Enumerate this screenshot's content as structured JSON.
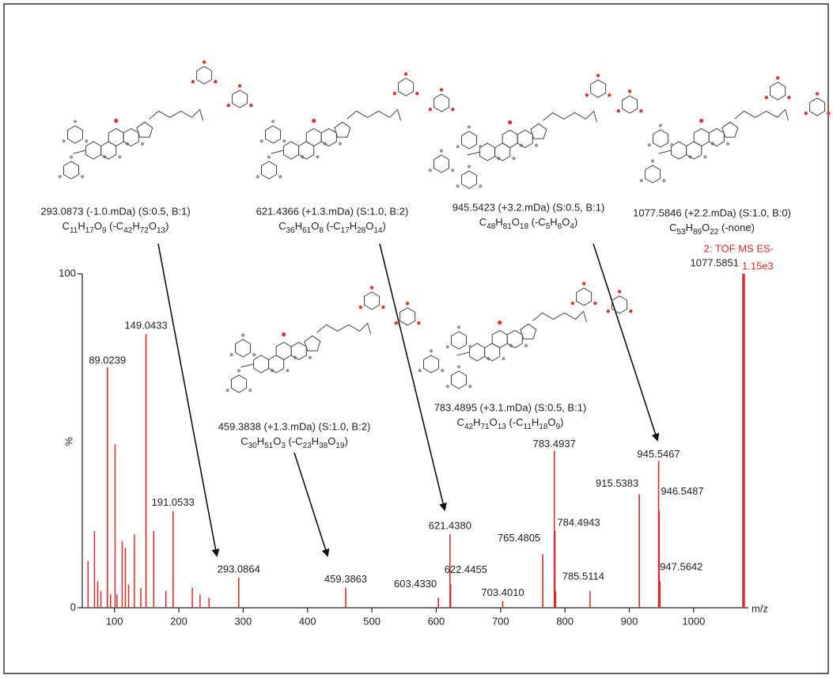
{
  "chart_data": {
    "type": "spectrum",
    "title": "2: TOF MS ES-",
    "base_peak_intensity": "1.15e3",
    "x_label": "m/z",
    "y_label": "%",
    "color": "#d62b2b",
    "xlim": [
      50,
      1085
    ],
    "xticks": [
      100,
      200,
      300,
      400,
      500,
      600,
      700,
      800,
      900,
      1000
    ],
    "ylim": [
      0,
      100
    ],
    "yticks": [
      0,
      100
    ],
    "peaks": {
      "x": [
        89.0239,
        149.0433,
        191.0533,
        293.0864,
        459.3863,
        603.433,
        621.438,
        622.4455,
        703.401,
        765.4805,
        783.4937,
        784.4943,
        785.5114,
        915.5383,
        945.5467,
        946.5487,
        947.5642,
        1077.5851
      ],
      "values": [
        72,
        82,
        29,
        9,
        6,
        3,
        22,
        7,
        2,
        16,
        47,
        23,
        5,
        34,
        44,
        29,
        8,
        100
      ],
      "labels": [
        "89.0239",
        "149.0433",
        "191.0533",
        "293.0864",
        "459.3863",
        "603.4330",
        "621.4380",
        "622.4455",
        "703.4010",
        "765.4805",
        "783.4937",
        "784.4943",
        "785.5114",
        "915.5383",
        "945.5467",
        "946.5487",
        "947.5642",
        "1077.5851"
      ]
    },
    "minor_peaks": {
      "x": [
        59,
        69,
        74,
        79,
        94,
        101,
        104,
        112,
        117,
        122,
        131,
        141,
        161,
        180,
        221,
        233,
        247,
        839,
        1078.5
      ],
      "values": [
        14,
        23,
        8,
        5,
        4,
        49,
        4,
        20,
        18,
        7,
        22,
        6,
        23,
        5,
        6,
        4,
        3,
        5,
        7
      ]
    },
    "fragments": [
      {
        "mass_text": "293.0873 (-1.0.mDa) (S:0.5, B:1)",
        "formula": "C11H17O9 (-C42H72O13)"
      },
      {
        "mass_text": "621.4366 (+1.3.mDa) (S:1.0, B:2)",
        "formula": "C36H61O8 (-C17H28O14)"
      },
      {
        "mass_text": "945.5423 (+3.2.mDa) (S:0.5, B:1)",
        "formula": "C48H81O18 (-C5H8O4)"
      },
      {
        "mass_text": "1077.5846 (+2.2.mDa) (S:1.0, B:0)",
        "formula": "C53H89O22 (-none)"
      },
      {
        "mass_text": "459.3838 (+1.3.mDa) (S:1.0, B:2)",
        "formula": "C30H51O3 (-C23H38O19)"
      },
      {
        "mass_text": "783.4895 (+3.1.mDa) (S:0.5, B:1)",
        "formula": "C42H71O13 (-C11H18O9)"
      }
    ]
  }
}
